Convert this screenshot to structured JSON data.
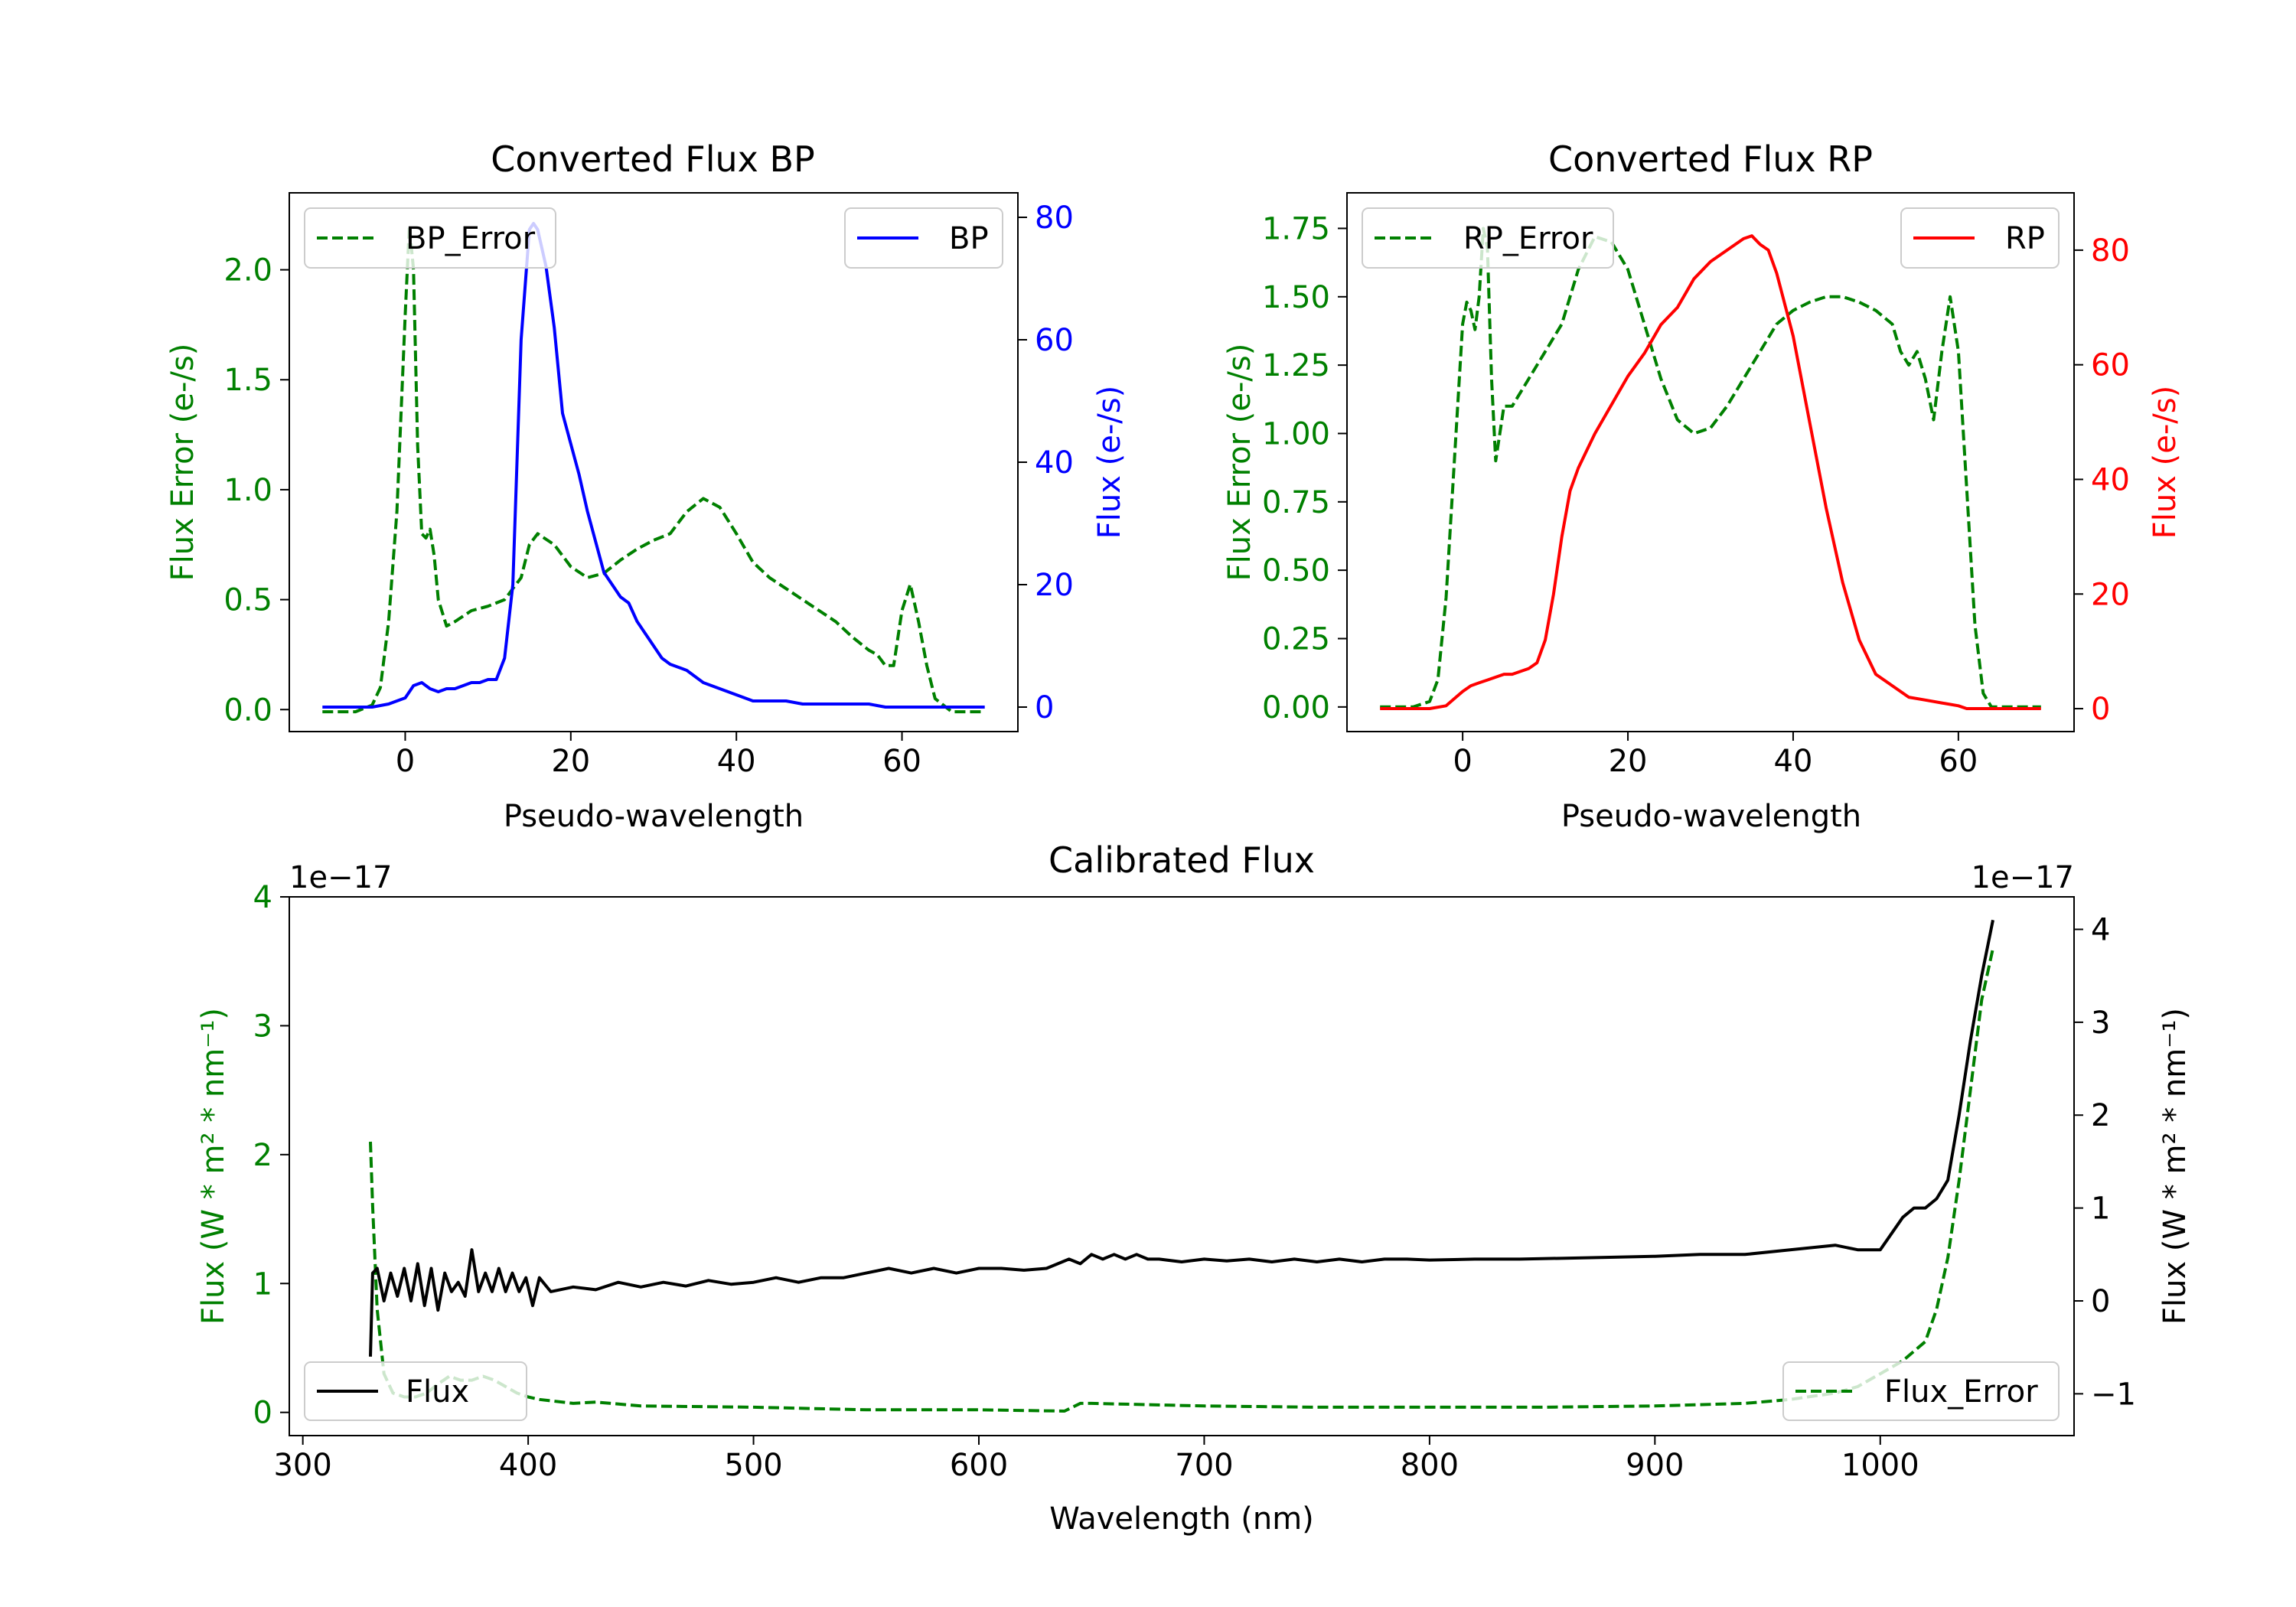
{
  "chart_data": [
    {
      "type": "line",
      "title": "Converted Flux BP",
      "xlabel": "Pseudo-wavelength",
      "ylabel_left": "Flux Error (e-/s)",
      "ylabel_right": "Flux (e-/s)",
      "xlim": [
        -14,
        74
      ],
      "ylim_left": [
        -0.1,
        2.35
      ],
      "ylim_right": [
        -4,
        84
      ],
      "xticks": [
        0,
        20,
        40,
        60
      ],
      "yticks_left": [
        0.0,
        0.5,
        1.0,
        1.5,
        2.0
      ],
      "yticks_right": [
        0,
        20,
        40,
        60,
        80
      ],
      "legend_left": "top-left",
      "legend_right": "top-right",
      "series": [
        {
          "name": "BP_Error",
          "axis": "left",
          "style": "dashed",
          "color": "#008000",
          "x": [
            -10,
            -6,
            -4,
            -3,
            -2,
            -1,
            0,
            0.5,
            1,
            1.5,
            2,
            2.5,
            3,
            3.5,
            4,
            5,
            6,
            8,
            10,
            12,
            14,
            15,
            16,
            18,
            20,
            22,
            24,
            26,
            28,
            30,
            32,
            34,
            36,
            38,
            40,
            42,
            44,
            46,
            48,
            50,
            52,
            54,
            56,
            57,
            58,
            59,
            60,
            61,
            62,
            63,
            64,
            66,
            70
          ],
          "y": [
            -0.01,
            -0.01,
            0.02,
            0.1,
            0.4,
            0.9,
            1.8,
            2.2,
            2.0,
            1.2,
            0.8,
            0.78,
            0.82,
            0.7,
            0.5,
            0.38,
            0.4,
            0.45,
            0.47,
            0.5,
            0.6,
            0.75,
            0.8,
            0.75,
            0.65,
            0.6,
            0.62,
            0.68,
            0.73,
            0.77,
            0.8,
            0.9,
            0.96,
            0.92,
            0.8,
            0.67,
            0.6,
            0.55,
            0.5,
            0.45,
            0.4,
            0.33,
            0.27,
            0.25,
            0.2,
            0.2,
            0.45,
            0.57,
            0.4,
            0.2,
            0.05,
            -0.01,
            -0.01
          ]
        },
        {
          "name": "BP",
          "axis": "right",
          "style": "solid",
          "color": "#0000ff",
          "x": [
            -10,
            -4,
            -2,
            0,
            1,
            2,
            3,
            4,
            5,
            6,
            7,
            8,
            9,
            10,
            11,
            12,
            13,
            14,
            15,
            15.5,
            16,
            17,
            18,
            19,
            20,
            21,
            22,
            23,
            24,
            25,
            26,
            27,
            28,
            29,
            30,
            31,
            32,
            33,
            34,
            35,
            36,
            38,
            40,
            42,
            44,
            46,
            48,
            50,
            52,
            54,
            56,
            58,
            60,
            62,
            64,
            66,
            70
          ],
          "y": [
            0,
            0,
            0.5,
            1.5,
            3.5,
            4,
            3,
            2.5,
            3,
            3,
            3.5,
            4,
            4,
            4.5,
            4.5,
            8,
            20,
            60,
            78,
            79,
            78,
            72,
            62,
            48,
            43,
            38,
            32,
            27,
            22,
            20,
            18,
            17,
            14,
            12,
            10,
            8,
            7,
            6.5,
            6,
            5,
            4,
            3,
            2,
            1,
            1,
            1,
            0.5,
            0.5,
            0.5,
            0.5,
            0.5,
            0,
            0,
            0,
            0,
            0,
            0
          ]
        }
      ]
    },
    {
      "type": "line",
      "title": "Converted Flux RP",
      "xlabel": "Pseudo-wavelength",
      "ylabel_left": "Flux Error (e-/s)",
      "ylabel_right": "Flux (e-/s)",
      "xlim": [
        -14,
        74
      ],
      "ylim_left": [
        -0.09,
        1.88
      ],
      "ylim_right": [
        -4,
        90
      ],
      "xticks": [
        0,
        20,
        40,
        60
      ],
      "yticks_left": [
        0.0,
        0.25,
        0.5,
        0.75,
        1.0,
        1.25,
        1.5,
        1.75
      ],
      "yticks_right": [
        0,
        20,
        40,
        60,
        80
      ],
      "legend_left": "top-left",
      "legend_right": "top-right",
      "series": [
        {
          "name": "RP_Error",
          "axis": "left",
          "style": "dashed",
          "color": "#008000",
          "x": [
            -10,
            -6,
            -4,
            -3,
            -2,
            -1,
            0,
            0.5,
            1,
            1.5,
            2,
            2.5,
            3,
            3.5,
            4,
            4.5,
            5,
            6,
            8,
            10,
            12,
            14,
            16,
            18,
            20,
            22,
            24,
            26,
            28,
            30,
            32,
            34,
            36,
            38,
            40,
            42,
            44,
            46,
            48,
            50,
            52,
            53,
            54,
            55,
            56,
            57,
            58,
            59,
            60,
            61,
            62,
            63,
            64,
            66,
            70
          ],
          "y": [
            0,
            0,
            0.02,
            0.1,
            0.4,
            0.9,
            1.4,
            1.48,
            1.45,
            1.38,
            1.5,
            1.75,
            1.68,
            1.2,
            0.9,
            1.0,
            1.1,
            1.1,
            1.2,
            1.3,
            1.4,
            1.6,
            1.72,
            1.7,
            1.6,
            1.4,
            1.2,
            1.05,
            1.0,
            1.02,
            1.1,
            1.2,
            1.3,
            1.4,
            1.45,
            1.48,
            1.5,
            1.5,
            1.48,
            1.45,
            1.4,
            1.3,
            1.25,
            1.3,
            1.2,
            1.05,
            1.3,
            1.5,
            1.3,
            0.8,
            0.3,
            0.05,
            0,
            0,
            0
          ]
        },
        {
          "name": "RP",
          "axis": "right",
          "style": "solid",
          "color": "#ff0000",
          "x": [
            -10,
            -4,
            -2,
            0,
            1,
            2,
            3,
            4,
            5,
            6,
            7,
            8,
            9,
            10,
            11,
            12,
            13,
            14,
            15,
            16,
            18,
            20,
            22,
            24,
            26,
            28,
            30,
            32,
            34,
            35,
            36,
            37,
            38,
            40,
            42,
            44,
            46,
            48,
            50,
            52,
            54,
            56,
            58,
            60,
            61,
            62,
            64,
            66,
            70
          ],
          "y": [
            0,
            0,
            0.5,
            3,
            4,
            4.5,
            5,
            5.5,
            6,
            6,
            6.5,
            7,
            8,
            12,
            20,
            30,
            38,
            42,
            45,
            48,
            53,
            58,
            62,
            67,
            70,
            75,
            78,
            80,
            82,
            82.5,
            81,
            80,
            76,
            65,
            50,
            35,
            22,
            12,
            6,
            4,
            2,
            1.5,
            1,
            0.5,
            0,
            0,
            0,
            0,
            0
          ]
        }
      ]
    },
    {
      "type": "line",
      "title": "Calibrated Flux",
      "xlabel": "Wavelength (nm)",
      "ylabel_left": "Flux (W * m² * nm⁻¹)",
      "ylabel_right": "Flux (W * m² * nm⁻¹)",
      "offset_left": "1e−17",
      "offset_right": "1e−17",
      "xlim": [
        294,
        1086
      ],
      "ylim_left": [
        -0.18,
        4.0
      ],
      "ylim_right": [
        -1.45,
        4.35
      ],
      "xticks": [
        300,
        400,
        500,
        600,
        700,
        800,
        900,
        1000
      ],
      "yticks_left": [
        0,
        1,
        2,
        3,
        4
      ],
      "yticks_right": [
        -1,
        0,
        1,
        2,
        3,
        4
      ],
      "legend_left": "bottom-left",
      "legend_right": "bottom-right",
      "series": [
        {
          "name": "Flux",
          "axis": "right",
          "style": "solid",
          "color": "#000000",
          "x": [
            330,
            331,
            333,
            336,
            339,
            342,
            345,
            348,
            351,
            354,
            357,
            360,
            363,
            366,
            369,
            372,
            375,
            378,
            381,
            384,
            387,
            390,
            393,
            396,
            399,
            402,
            405,
            410,
            420,
            430,
            440,
            450,
            460,
            470,
            480,
            490,
            500,
            510,
            520,
            530,
            540,
            550,
            560,
            570,
            580,
            590,
            600,
            610,
            620,
            630,
            640,
            645,
            650,
            655,
            660,
            665,
            670,
            675,
            680,
            690,
            700,
            710,
            720,
            730,
            740,
            750,
            760,
            770,
            780,
            790,
            800,
            820,
            840,
            860,
            880,
            900,
            920,
            940,
            960,
            980,
            990,
            1000,
            1010,
            1015,
            1020,
            1025,
            1030,
            1035,
            1040,
            1045,
            1050
          ],
          "y": [
            -0.6,
            0.3,
            0.35,
            0,
            0.3,
            0.05,
            0.35,
            0,
            0.4,
            -0.05,
            0.35,
            -0.1,
            0.3,
            0.1,
            0.2,
            0.05,
            0.55,
            0.1,
            0.3,
            0.1,
            0.35,
            0.1,
            0.3,
            0.1,
            0.25,
            -0.05,
            0.25,
            0.1,
            0.15,
            0.12,
            0.2,
            0.15,
            0.2,
            0.16,
            0.22,
            0.18,
            0.2,
            0.25,
            0.2,
            0.25,
            0.25,
            0.3,
            0.35,
            0.3,
            0.35,
            0.3,
            0.35,
            0.35,
            0.33,
            0.35,
            0.45,
            0.4,
            0.5,
            0.45,
            0.5,
            0.45,
            0.5,
            0.45,
            0.45,
            0.42,
            0.45,
            0.43,
            0.45,
            0.42,
            0.45,
            0.42,
            0.45,
            0.42,
            0.45,
            0.45,
            0.44,
            0.45,
            0.45,
            0.46,
            0.47,
            0.48,
            0.5,
            0.5,
            0.55,
            0.6,
            0.55,
            0.55,
            0.9,
            1.0,
            1.0,
            1.1,
            1.3,
            2.0,
            2.8,
            3.5,
            4.1
          ]
        },
        {
          "name": "Flux_Error",
          "axis": "left",
          "style": "dashed",
          "color": "#008000",
          "x": [
            330,
            331,
            333,
            336,
            340,
            345,
            350,
            355,
            360,
            365,
            370,
            375,
            380,
            385,
            390,
            395,
            400,
            405,
            410,
            420,
            430,
            450,
            500,
            550,
            600,
            638,
            645,
            650,
            700,
            750,
            800,
            850,
            900,
            940,
            960,
            980,
            990,
            1000,
            1010,
            1020,
            1025,
            1030,
            1035,
            1040,
            1045,
            1050
          ],
          "y": [
            2.1,
            1.6,
            0.8,
            0.3,
            0.15,
            0.12,
            0.12,
            0.15,
            0.22,
            0.28,
            0.25,
            0.25,
            0.28,
            0.25,
            0.2,
            0.15,
            0.12,
            0.1,
            0.09,
            0.07,
            0.08,
            0.05,
            0.04,
            0.02,
            0.02,
            0.01,
            0.07,
            0.07,
            0.05,
            0.04,
            0.04,
            0.04,
            0.05,
            0.07,
            0.1,
            0.15,
            0.2,
            0.3,
            0.4,
            0.55,
            0.8,
            1.2,
            1.8,
            2.5,
            3.2,
            3.6
          ]
        }
      ]
    }
  ]
}
